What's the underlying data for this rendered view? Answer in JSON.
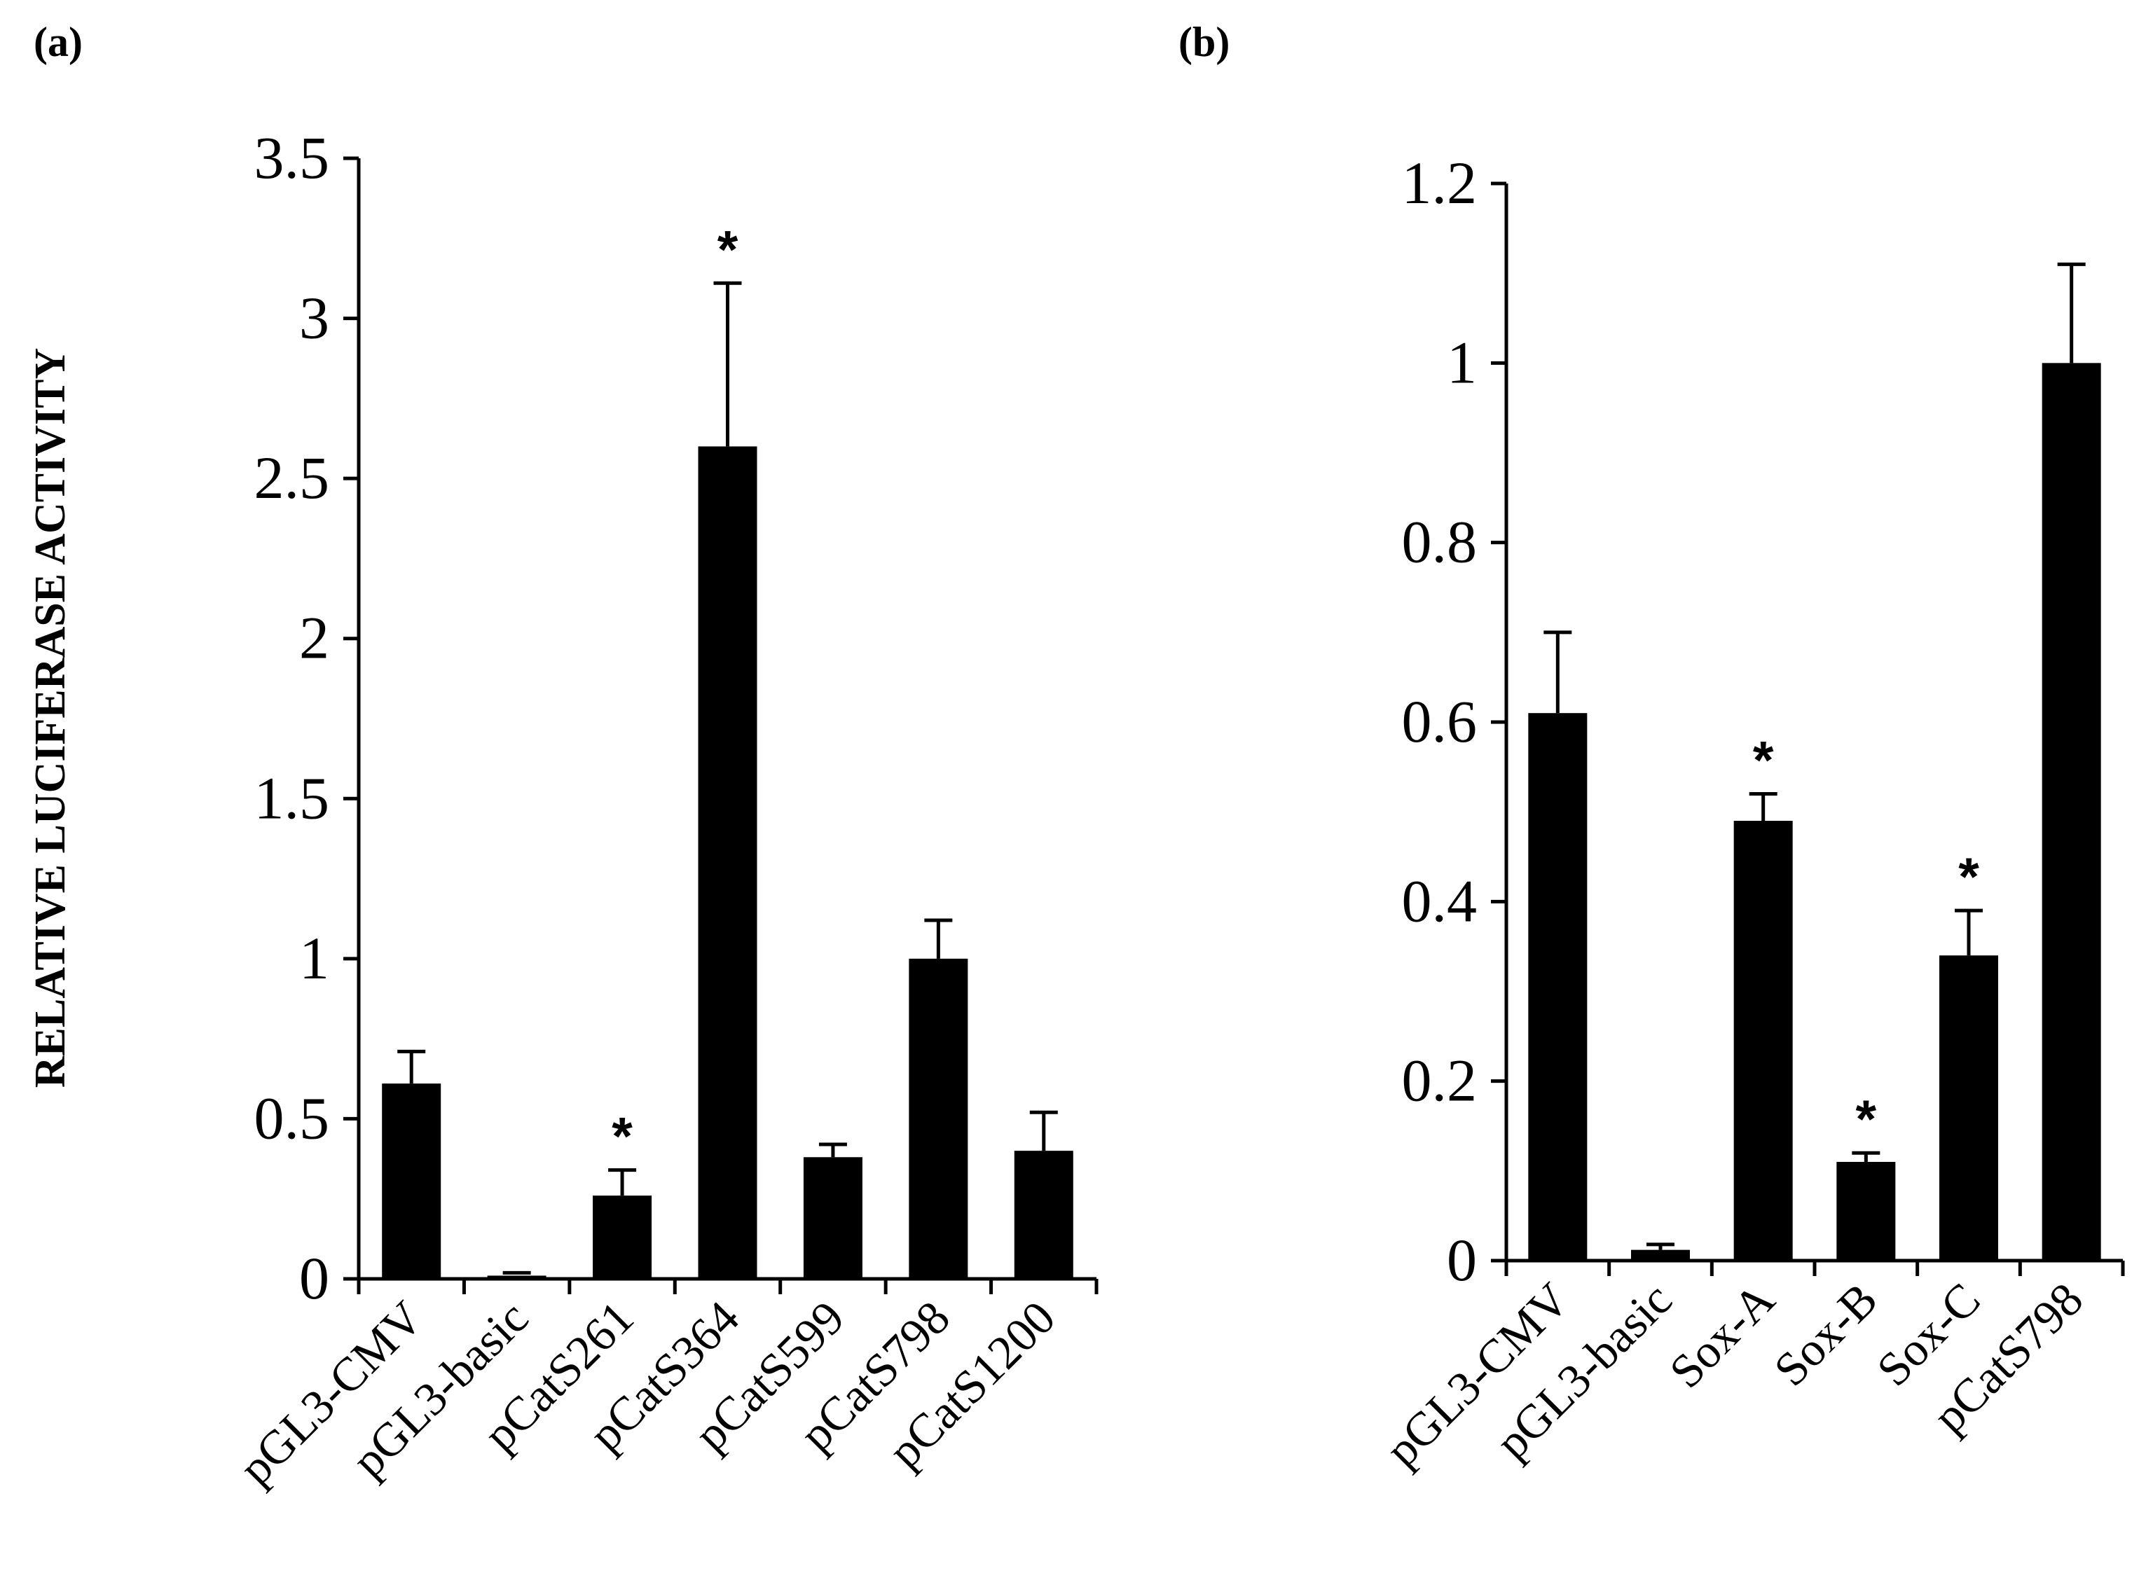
{
  "chart_data": [
    {
      "type": "bar",
      "panel_label": "(a)",
      "ylabel": "RELATIVE LUCIFERASE ACTIVITY",
      "xlabel": "",
      "ylim": [
        0,
        3.5
      ],
      "yticks": [
        0,
        0.5,
        1,
        1.5,
        2,
        2.5,
        3,
        3.5
      ],
      "ytick_labels": [
        "0",
        "0.5",
        "1",
        "1.5",
        "2",
        "2.5",
        "3",
        "3.5"
      ],
      "categories": [
        "pGL3-CMV",
        "pGL3-basic",
        "pCatS261",
        "pCatS364",
        "pCatS599",
        "pCatS798",
        "pCatS1200"
      ],
      "values": [
        0.61,
        0.01,
        0.26,
        2.6,
        0.38,
        1.0,
        0.4
      ],
      "errors": [
        0.1,
        0.0,
        0.08,
        0.51,
        0.04,
        0.12,
        0.12
      ],
      "significance": [
        "",
        "",
        "*",
        "*",
        "",
        "",
        ""
      ]
    },
    {
      "type": "bar",
      "panel_label": "(b)",
      "ylabel": "",
      "xlabel": "",
      "ylim": [
        0,
        1.2
      ],
      "yticks": [
        0,
        0.2,
        0.4,
        0.6,
        0.8,
        1,
        1.2
      ],
      "ytick_labels": [
        "0",
        "0.2",
        "0.4",
        "0.6",
        "0.8",
        "1",
        "1.2"
      ],
      "categories": [
        "pGL3-CMV",
        "pGL3-basic",
        "Sox-A",
        "Sox-B",
        "Sox-C",
        "pCatS798"
      ],
      "values": [
        0.61,
        0.012,
        0.49,
        0.11,
        0.34,
        1.0
      ],
      "errors": [
        0.09,
        0.006,
        0.03,
        0.01,
        0.05,
        0.11
      ],
      "significance": [
        "",
        "",
        "*",
        "*",
        "*",
        ""
      ]
    }
  ]
}
